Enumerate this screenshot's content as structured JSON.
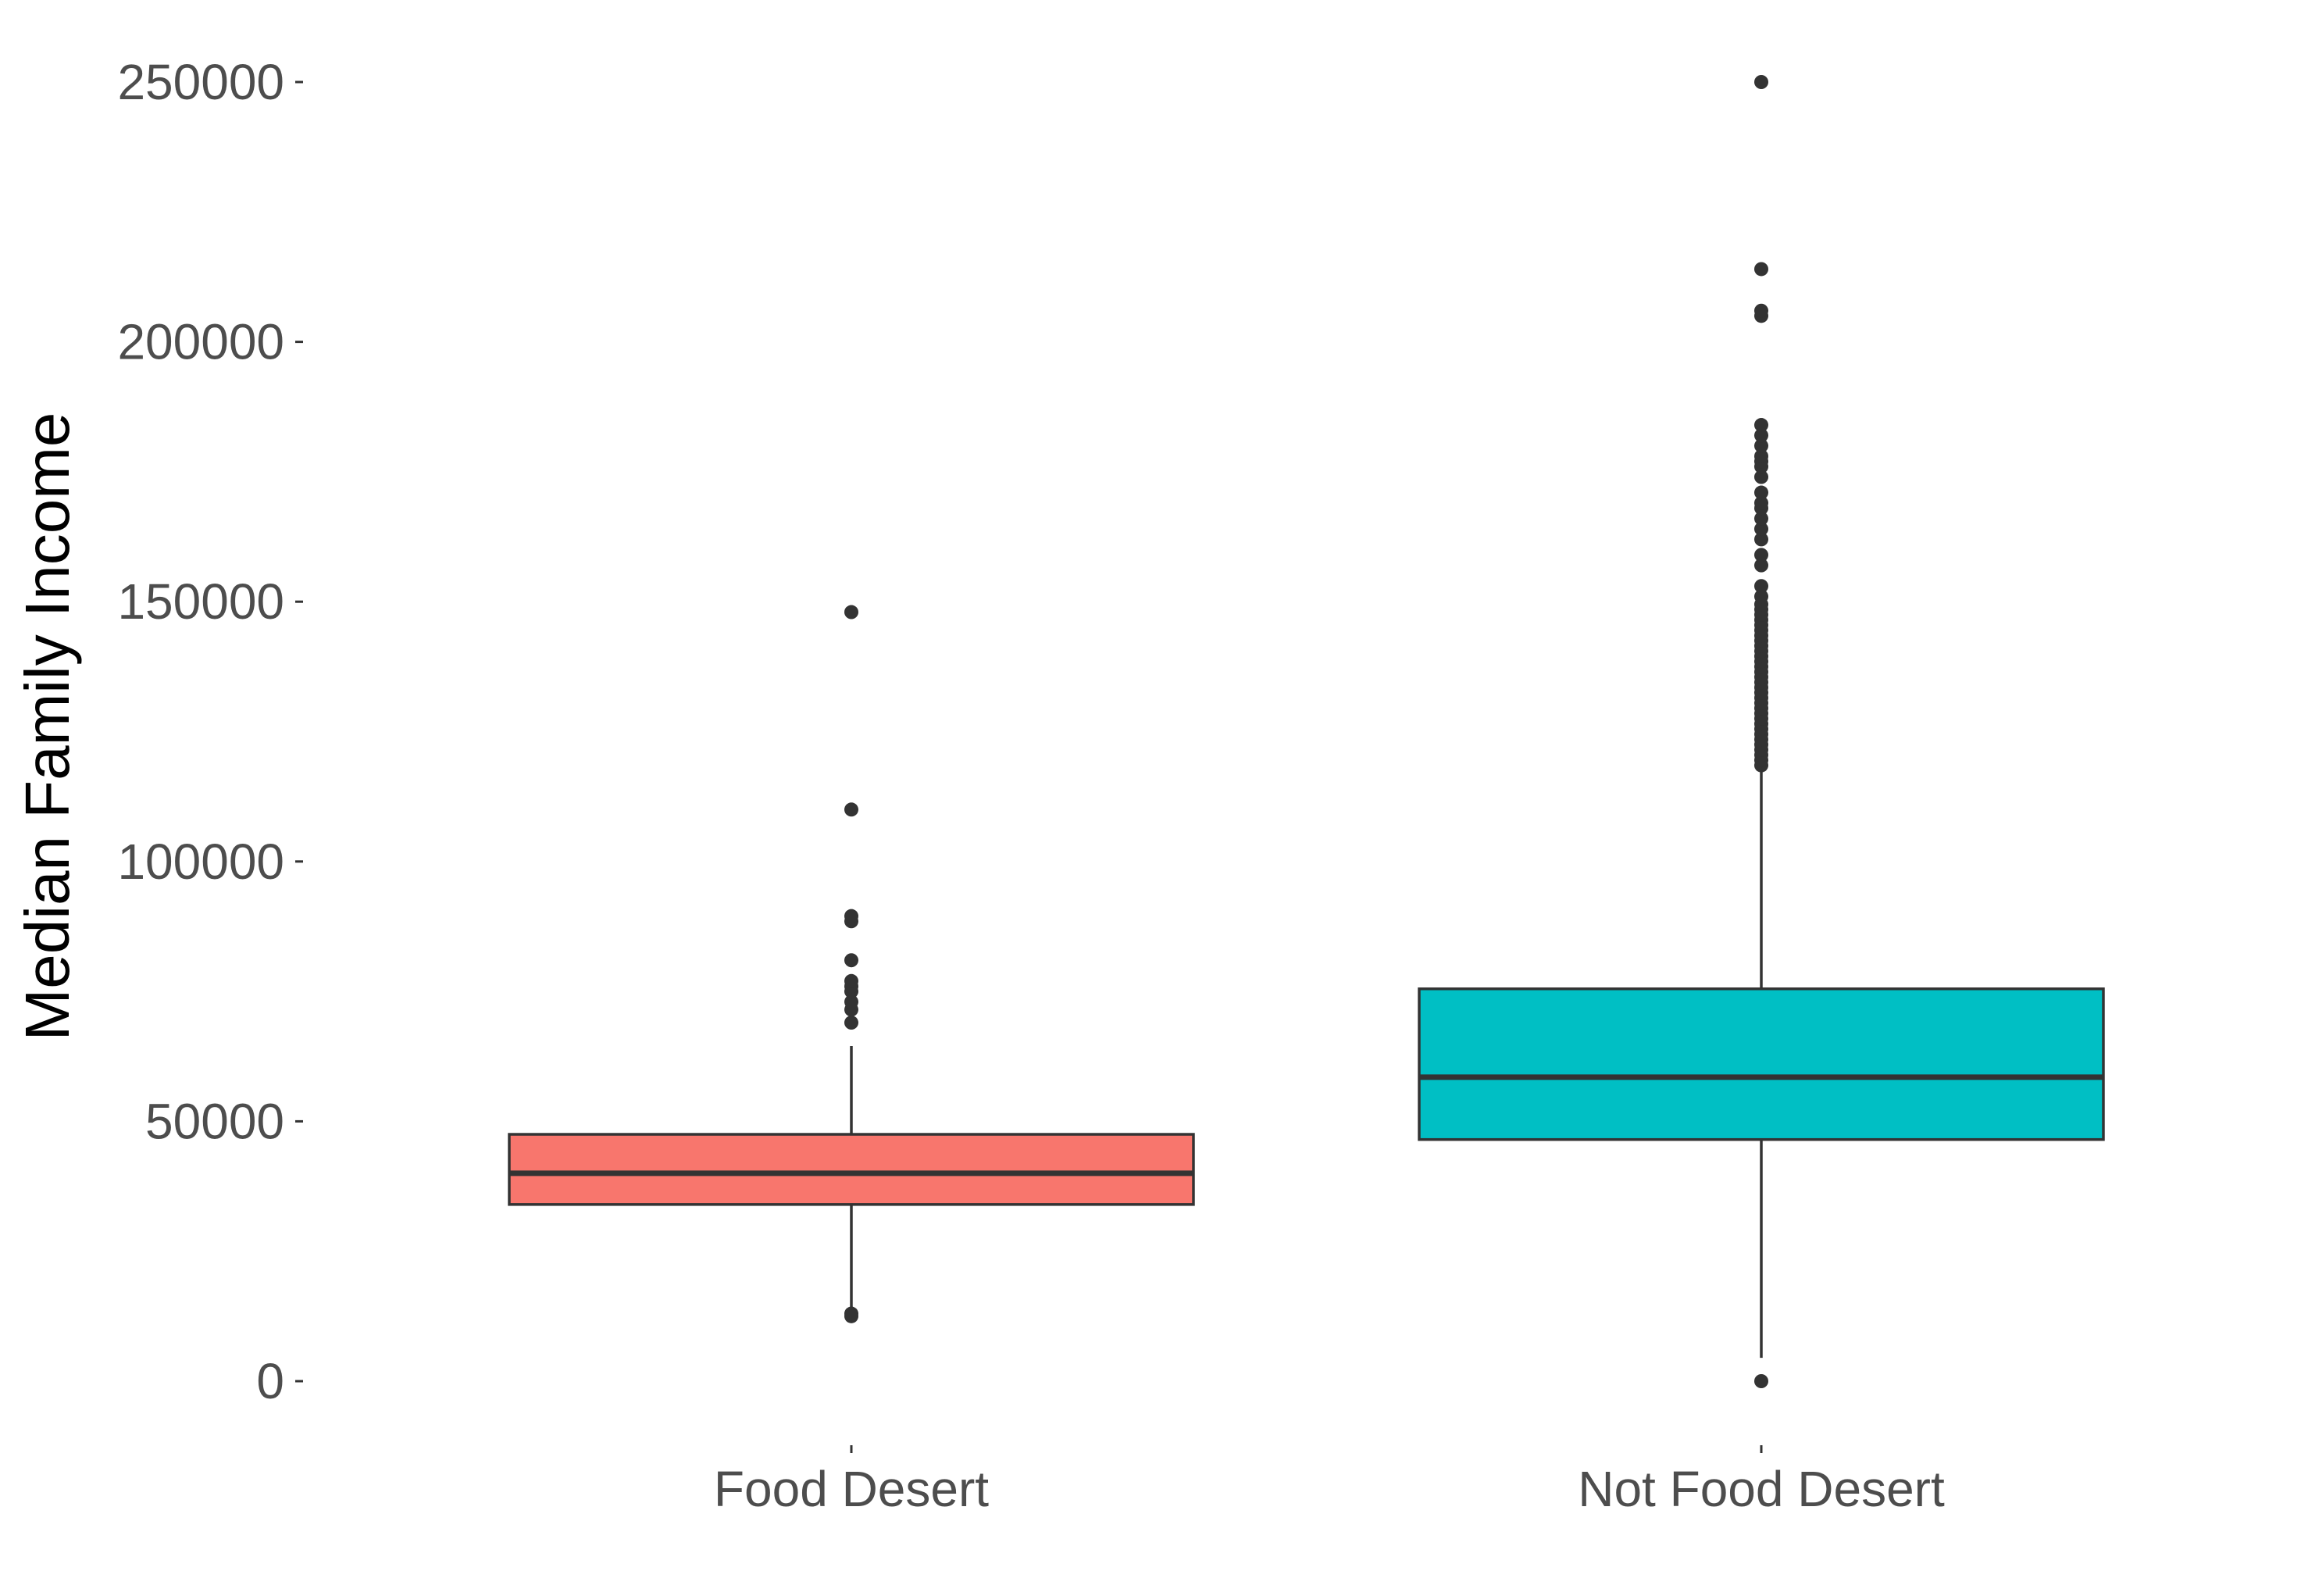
{
  "chart_data": {
    "type": "boxplot",
    "title": "",
    "xlabel": "",
    "ylabel": "Median Family Income",
    "ylim": [
      -15000,
      265000
    ],
    "y_ticks": [
      0,
      50000,
      100000,
      150000,
      200000,
      250000
    ],
    "y_tick_labels": [
      "0",
      "50000",
      "100000",
      "150000",
      "200000",
      "250000"
    ],
    "grid": false,
    "legend": "none",
    "categories": [
      "Food Desert",
      "Not Food Desert"
    ],
    "series": [
      {
        "category": "Food Desert",
        "color": "#F8766D",
        "whisker_low": 13000,
        "q1": 34000,
        "median": 40000,
        "q3": 47500,
        "whisker_high": 64500,
        "outliers": [
          12500,
          13000,
          69000,
          71500,
          73000,
          75000,
          76000,
          77000,
          81000,
          88500,
          89500,
          110000,
          148000
        ]
      },
      {
        "category": "Not Food Desert",
        "color": "#00BFC4",
        "whisker_low": 4500,
        "q1": 46500,
        "median": 58500,
        "q3": 75500,
        "whisker_high": 118000,
        "outliers": [
          0,
          118500,
          119500,
          120500,
          121500,
          122500,
          123500,
          124500,
          125500,
          126500,
          127500,
          128500,
          129500,
          130500,
          131500,
          132500,
          133500,
          134500,
          135500,
          136500,
          137500,
          138500,
          139500,
          140500,
          141500,
          142500,
          143500,
          144500,
          145500,
          146500,
          147500,
          148500,
          149500,
          151000,
          153000,
          157000,
          159000,
          162000,
          164000,
          166000,
          168000,
          169000,
          171000,
          174000,
          176000,
          177000,
          178000,
          180000,
          182000,
          184000,
          205000,
          206000,
          214000,
          250000
        ]
      }
    ]
  }
}
